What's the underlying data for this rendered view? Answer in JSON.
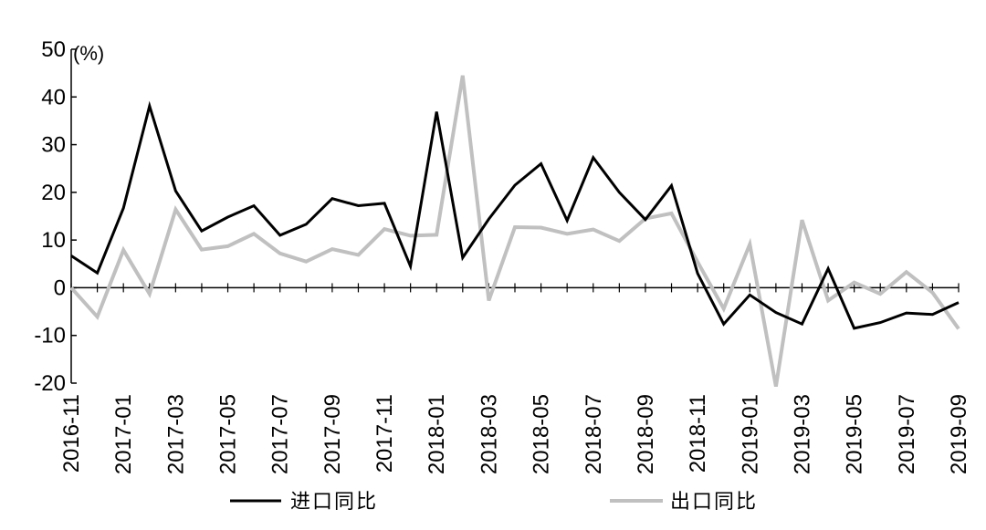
{
  "chart_data": {
    "type": "line",
    "unit_label": "(%)",
    "ylim": [
      -20,
      50
    ],
    "y_ticks": [
      50,
      40,
      30,
      20,
      10,
      0,
      -10,
      -20
    ],
    "x_tick_labels": [
      "2016-11",
      "2017-01",
      "2017-03",
      "2017-05",
      "2017-07",
      "2017-09",
      "2017-11",
      "2018-01",
      "2018-03",
      "2018-05",
      "2018-07",
      "2018-09",
      "2018-11",
      "2019-01",
      "2019-03",
      "2019-05",
      "2019-07",
      "2019-09"
    ],
    "x": [
      "2016-11",
      "2016-12",
      "2017-01",
      "2017-02",
      "2017-03",
      "2017-04",
      "2017-05",
      "2017-06",
      "2017-07",
      "2017-08",
      "2017-09",
      "2017-10",
      "2017-11",
      "2017-12",
      "2018-01",
      "2018-02",
      "2018-03",
      "2018-04",
      "2018-05",
      "2018-06",
      "2018-07",
      "2018-08",
      "2018-09",
      "2018-10",
      "2018-11",
      "2018-12",
      "2019-01",
      "2019-02",
      "2019-03",
      "2019-04",
      "2019-05",
      "2019-06",
      "2019-07",
      "2019-08",
      "2019-09"
    ],
    "series": [
      {
        "name": "进口同比",
        "color": "#000000",
        "values": [
          6.7,
          3.1,
          16.7,
          38.1,
          20.3,
          11.9,
          14.8,
          17.2,
          11.0,
          13.3,
          18.7,
          17.2,
          17.7,
          4.5,
          36.9,
          6.3,
          14.4,
          21.5,
          26.0,
          14.1,
          27.3,
          20.0,
          14.3,
          21.4,
          3.0,
          -7.6,
          -1.5,
          -5.2,
          -7.6,
          4.0,
          -8.5,
          -7.3,
          -5.3,
          -5.6,
          -3.1
        ]
      },
      {
        "name": "出口同比",
        "color": "#c0c0c0",
        "values": [
          0.0,
          -6.1,
          7.9,
          -1.3,
          16.4,
          8.0,
          8.7,
          11.3,
          7.2,
          5.5,
          8.1,
          6.9,
          12.3,
          10.9,
          11.1,
          44.5,
          -2.7,
          12.7,
          12.6,
          11.3,
          12.2,
          9.8,
          14.5,
          15.6,
          5.4,
          -4.4,
          9.1,
          -20.7,
          14.2,
          -2.7,
          1.1,
          -1.3,
          3.3,
          -1.0,
          -8.6
        ]
      }
    ],
    "legend": {
      "position": "bottom",
      "entries": [
        "进口同比",
        "出口同比"
      ]
    },
    "grid": false
  }
}
